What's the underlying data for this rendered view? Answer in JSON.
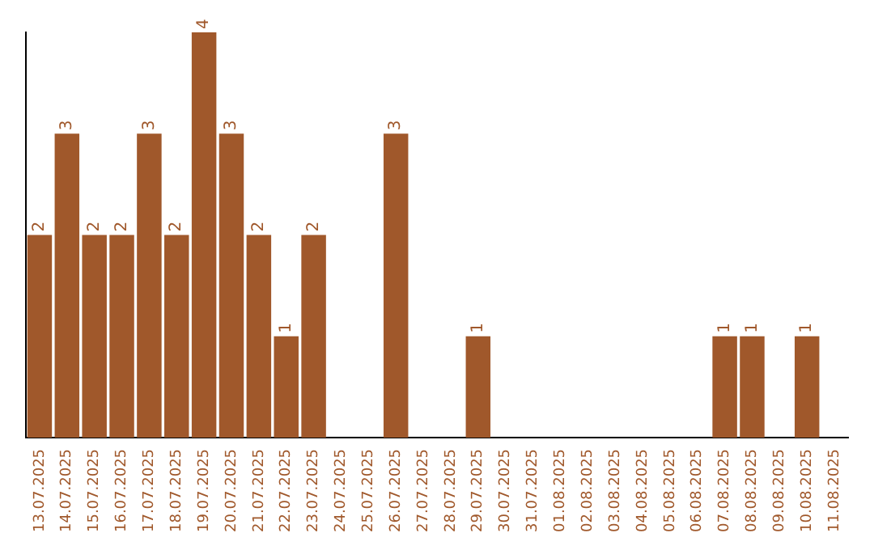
{
  "chart_data": {
    "type": "bar",
    "categories": [
      "13.07.2025",
      "14.07.2025",
      "15.07.2025",
      "16.07.2025",
      "17.07.2025",
      "18.07.2025",
      "19.07.2025",
      "20.07.2025",
      "21.07.2025",
      "22.07.2025",
      "23.07.2025",
      "24.07.2025",
      "25.07.2025",
      "26.07.2025",
      "27.07.2025",
      "28.07.2025",
      "29.07.2025",
      "30.07.2025",
      "31.07.2025",
      "01.08.2025",
      "02.08.2025",
      "03.08.2025",
      "04.08.2025",
      "05.08.2025",
      "06.08.2025",
      "07.08.2025",
      "08.08.2025",
      "09.08.2025",
      "10.08.2025",
      "11.08.2025"
    ],
    "values": [
      2,
      3,
      2,
      2,
      3,
      2,
      4,
      3,
      2,
      1,
      2,
      0,
      0,
      3,
      0,
      0,
      1,
      0,
      0,
      0,
      0,
      0,
      0,
      0,
      0,
      1,
      1,
      0,
      1,
      0
    ],
    "value_labels": [
      "2",
      "3",
      "2",
      "2",
      "3",
      "2",
      "4",
      "3",
      "2",
      "1",
      "2",
      null,
      null,
      "3",
      null,
      null,
      "1",
      null,
      null,
      null,
      null,
      null,
      null,
      null,
      null,
      "1",
      "1",
      null,
      "1",
      null
    ],
    "color": "#a0582b",
    "grid": false,
    "legend": false
  }
}
